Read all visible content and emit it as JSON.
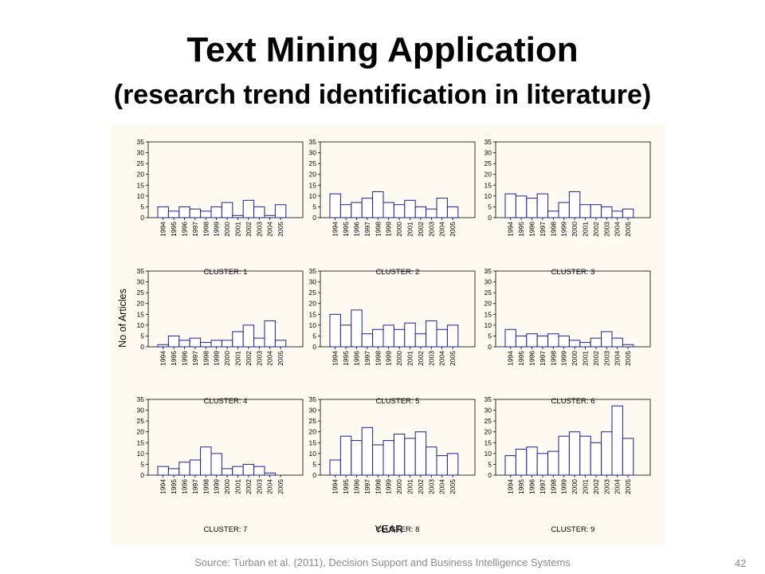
{
  "slide": {
    "title": "Text Mining Application",
    "subtitle": "(research trend identification in literature)",
    "source": "Source:  Turban et al. (2011), Decision Support and Business Intelligence Systems",
    "page_number": "42"
  },
  "chart_data": {
    "type": "bar",
    "layout": "3x3 small multiples",
    "xlabel": "YEAR",
    "ylabel": "No of Articles",
    "ylim": [
      0,
      35
    ],
    "yticks": [
      0,
      5,
      10,
      15,
      20,
      25,
      30,
      35
    ],
    "categories": [
      "1994",
      "1995",
      "1996",
      "1997",
      "1998",
      "1999",
      "2000",
      "2001",
      "2002",
      "2003",
      "2004",
      "2005"
    ],
    "bar_color": "#1f1f8f",
    "grid": false,
    "panels": [
      {
        "name": "CLUSTER: 1",
        "values": [
          5,
          3,
          5,
          4,
          3,
          5,
          7,
          1,
          8,
          5,
          1,
          6
        ]
      },
      {
        "name": "CLUSTER: 2",
        "values": [
          11,
          6,
          7,
          9,
          12,
          7,
          6,
          8,
          5,
          4,
          9,
          5
        ]
      },
      {
        "name": "CLUSTER: 3",
        "values": [
          11,
          10,
          9,
          11,
          3,
          7,
          12,
          6,
          6,
          5,
          3,
          4
        ]
      },
      {
        "name": "CLUSTER: 4",
        "values": [
          1,
          5,
          3,
          4,
          2,
          3,
          3,
          7,
          10,
          4,
          12,
          3
        ]
      },
      {
        "name": "CLUSTER: 5",
        "values": [
          15,
          10,
          17,
          6,
          8,
          10,
          8,
          11,
          6,
          12,
          8,
          10
        ]
      },
      {
        "name": "CLUSTER: 6",
        "values": [
          8,
          5,
          6,
          5,
          6,
          5,
          3,
          2,
          4,
          7,
          4,
          1
        ]
      },
      {
        "name": "CLUSTER: 7",
        "values": [
          4,
          3,
          6,
          7,
          13,
          10,
          3,
          4,
          5,
          4,
          1,
          0
        ]
      },
      {
        "name": "CLUSTER: 8",
        "values": [
          7,
          18,
          16,
          22,
          14,
          16,
          19,
          17,
          20,
          13,
          9,
          10
        ]
      },
      {
        "name": "CLUSTER: 9",
        "values": [
          9,
          12,
          13,
          10,
          11,
          18,
          20,
          18,
          15,
          20,
          32,
          17
        ]
      }
    ]
  }
}
